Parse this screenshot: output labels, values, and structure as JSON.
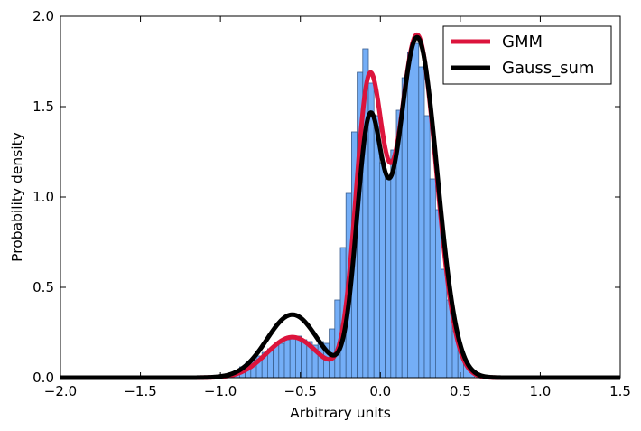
{
  "chart_data": {
    "type": "histogram+line",
    "title": "",
    "xlabel": "Arbitrary units",
    "ylabel": "Probability density",
    "xlim": [
      -2.0,
      1.5
    ],
    "ylim": [
      0.0,
      2.0
    ],
    "xticks": [
      "−2.0",
      "−1.5",
      "−1.0",
      "−0.5",
      "0.0",
      "0.5",
      "1.0",
      "1.5"
    ],
    "yticks": [
      "0.0",
      "0.5",
      "1.0",
      "1.5",
      "2.0"
    ],
    "histogram": {
      "bin_width": 0.035,
      "bins": [
        [
          -0.95,
          -0.915,
          0.02
        ],
        [
          -0.915,
          -0.88,
          0.04
        ],
        [
          -0.88,
          -0.845,
          0.06
        ],
        [
          -0.845,
          -0.81,
          0.08
        ],
        [
          -0.81,
          -0.775,
          0.1
        ],
        [
          -0.775,
          -0.74,
          0.12
        ],
        [
          -0.74,
          -0.705,
          0.14
        ],
        [
          -0.705,
          -0.67,
          0.16
        ],
        [
          -0.67,
          -0.635,
          0.18
        ],
        [
          -0.635,
          -0.6,
          0.19
        ],
        [
          -0.6,
          -0.565,
          0.21
        ],
        [
          -0.565,
          -0.53,
          0.22
        ],
        [
          -0.53,
          -0.495,
          0.23
        ],
        [
          -0.495,
          -0.46,
          0.21
        ],
        [
          -0.46,
          -0.425,
          0.2
        ],
        [
          -0.425,
          -0.39,
          0.18
        ],
        [
          -0.39,
          -0.355,
          0.2
        ],
        [
          -0.355,
          -0.32,
          0.19
        ],
        [
          -0.32,
          -0.285,
          0.27
        ],
        [
          -0.285,
          -0.25,
          0.43
        ],
        [
          -0.25,
          -0.215,
          0.72
        ],
        [
          -0.215,
          -0.18,
          1.02
        ],
        [
          -0.18,
          -0.145,
          1.36
        ],
        [
          -0.145,
          -0.11,
          1.69
        ],
        [
          -0.11,
          -0.075,
          1.82
        ],
        [
          -0.075,
          -0.04,
          1.63
        ],
        [
          -0.04,
          -0.005,
          1.45
        ],
        [
          -0.005,
          0.03,
          1.19
        ],
        [
          0.03,
          0.065,
          1.12
        ],
        [
          0.065,
          0.1,
          1.26
        ],
        [
          0.1,
          0.135,
          1.48
        ],
        [
          0.135,
          0.17,
          1.66
        ],
        [
          0.17,
          0.205,
          1.8
        ],
        [
          0.205,
          0.24,
          1.85
        ],
        [
          0.24,
          0.275,
          1.72
        ],
        [
          0.275,
          0.31,
          1.45
        ],
        [
          0.31,
          0.345,
          1.1
        ],
        [
          0.345,
          0.38,
          0.93
        ],
        [
          0.38,
          0.415,
          0.6
        ],
        [
          0.415,
          0.45,
          0.43
        ],
        [
          0.45,
          0.485,
          0.26
        ],
        [
          0.485,
          0.52,
          0.15
        ],
        [
          0.52,
          0.555,
          0.07
        ],
        [
          0.555,
          0.59,
          0.03
        ]
      ]
    },
    "series": [
      {
        "name": "GMM",
        "color": "#dc143c",
        "components": [
          {
            "weight": 0.09,
            "mean": -0.55,
            "sd": 0.16
          },
          {
            "weight": 0.34,
            "mean": -0.07,
            "sd": 0.085
          },
          {
            "weight": 0.57,
            "mean": 0.23,
            "sd": 0.12
          }
        ]
      },
      {
        "name": "Gauss_sum",
        "color": "#000000",
        "components": [
          {
            "weight": 0.14,
            "mean": -0.55,
            "sd": 0.16
          },
          {
            "weight": 0.27,
            "mean": -0.07,
            "sd": 0.08
          },
          {
            "weight": 0.59,
            "mean": 0.23,
            "sd": 0.125
          }
        ]
      }
    ],
    "legend_position": "top-right",
    "colors": {
      "bar_fill": "#74aef7",
      "bar_edge": "#3a5f8f",
      "frame": "#000000"
    }
  }
}
